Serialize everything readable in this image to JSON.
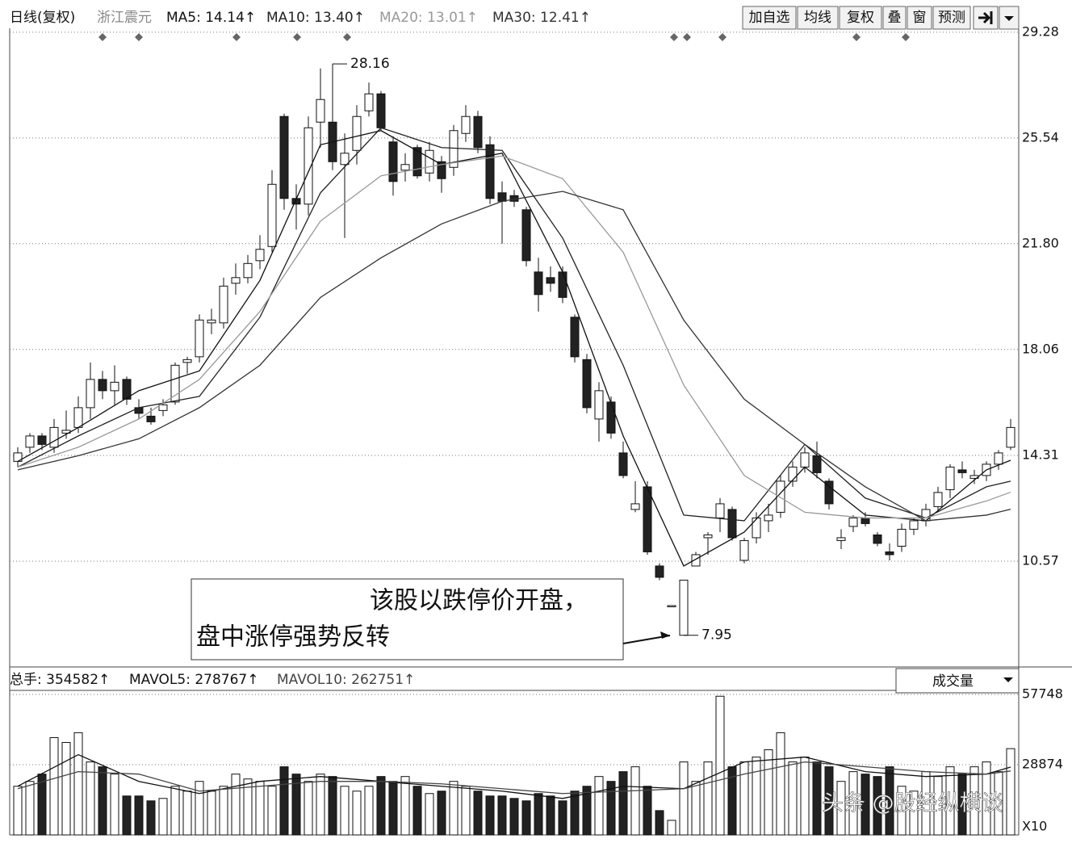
{
  "header": {
    "title": "日线(复权)",
    "stock": "浙江震元",
    "buttons": [
      "加自选",
      "均线",
      "复权",
      "叠",
      "窗",
      "预测"
    ]
  },
  "annotation": {
    "lines": [
      "该股以跌停价开盘，",
      "盘中涨停强势反转"
    ]
  },
  "watermark": "头条 @股经纵横谈",
  "chart_data": [
    {
      "type": "candlestick",
      "open": [
        14.1,
        14.6,
        15.0,
        14.6,
        15.1,
        15.3,
        16.0,
        17.0,
        16.6,
        17.0,
        16.0,
        15.7,
        15.9,
        16.2,
        17.6,
        17.8,
        19.0,
        19.0,
        20.4,
        20.6,
        21.2,
        21.7,
        26.3,
        23.4,
        23.2,
        26.1,
        26.1,
        24.6,
        25.1,
        26.5,
        27.1,
        25.4,
        24.4,
        25.2,
        24.3,
        24.7,
        24.5,
        25.7,
        26.3,
        25.3,
        23.6,
        23.5,
        23.0,
        20.8,
        20.6,
        20.8,
        19.2,
        17.7,
        15.6,
        16.2,
        14.4,
        12.4,
        13.2,
        10.4,
        9.0,
        7.95,
        10.4,
        11.4,
        12.1,
        12.4,
        10.6,
        11.4,
        12.0,
        12.3,
        13.4,
        13.9,
        14.3,
        13.4,
        11.3,
        11.8,
        12.1,
        11.5,
        10.9,
        11.1,
        11.7,
        12.0,
        12.5,
        13.1,
        13.8,
        13.5,
        13.6,
        14.0,
        14.6
      ],
      "high": [
        14.6,
        15.1,
        15.1,
        15.6,
        15.9,
        16.4,
        17.6,
        17.3,
        17.5,
        17.1,
        16.3,
        16.0,
        16.3,
        17.6,
        17.8,
        19.3,
        19.5,
        20.6,
        21.1,
        21.4,
        22.1,
        24.4,
        26.4,
        23.9,
        26.3,
        28.0,
        28.16,
        25.7,
        26.7,
        27.5,
        27.2,
        25.6,
        25.0,
        25.3,
        25.4,
        24.9,
        26.0,
        26.7,
        26.5,
        25.6,
        24.0,
        23.7,
        23.1,
        21.3,
        21.0,
        21.0,
        19.3,
        17.9,
        16.9,
        16.4,
        14.8,
        13.4,
        13.4,
        10.5,
        9.0,
        9.9,
        10.9,
        11.6,
        12.8,
        12.5,
        11.4,
        12.3,
        12.6,
        13.6,
        14.1,
        14.6,
        14.8,
        13.5,
        11.7,
        12.2,
        12.3,
        11.6,
        11.2,
        11.9,
        12.1,
        12.6,
        13.2,
        14.0,
        14.1,
        13.8,
        14.1,
        14.5,
        15.6
      ],
      "low": [
        13.9,
        14.4,
        14.5,
        14.4,
        14.9,
        15.1,
        15.6,
        16.3,
        16.1,
        16.1,
        15.6,
        15.4,
        15.7,
        16.1,
        17.2,
        17.6,
        18.6,
        18.8,
        20.0,
        20.4,
        20.9,
        21.5,
        23.0,
        22.3,
        22.8,
        25.2,
        24.4,
        22.0,
        24.6,
        26.3,
        25.8,
        23.5,
        24.0,
        24.1,
        24.0,
        23.6,
        24.2,
        25.4,
        25.0,
        23.2,
        21.8,
        23.1,
        21.0,
        19.4,
        20.1,
        19.7,
        17.6,
        15.8,
        14.8,
        14.9,
        13.5,
        12.3,
        10.8,
        9.9,
        9.0,
        7.95,
        10.4,
        10.8,
        11.6,
        11.3,
        10.5,
        11.2,
        11.6,
        12.1,
        13.2,
        13.7,
        13.5,
        12.4,
        11.0,
        11.6,
        11.8,
        11.1,
        10.6,
        10.9,
        11.5,
        11.8,
        12.3,
        12.8,
        13.5,
        13.3,
        13.4,
        13.8,
        14.5
      ],
      "close": [
        14.4,
        15.0,
        14.7,
        15.3,
        15.2,
        16.0,
        17.0,
        16.6,
        16.9,
        16.3,
        15.8,
        15.5,
        16.1,
        17.5,
        17.7,
        19.1,
        19.1,
        20.3,
        20.6,
        21.1,
        21.6,
        23.9,
        23.4,
        23.2,
        25.9,
        26.9,
        24.7,
        25.0,
        26.3,
        27.1,
        25.9,
        24.0,
        24.6,
        24.2,
        25.1,
        24.1,
        25.8,
        26.3,
        25.2,
        23.4,
        23.3,
        23.3,
        21.2,
        20.0,
        20.4,
        19.9,
        17.8,
        16.0,
        16.6,
        15.1,
        13.6,
        12.6,
        10.9,
        10.0,
        9.0,
        9.9,
        10.8,
        11.5,
        12.6,
        11.4,
        11.3,
        12.1,
        12.2,
        13.4,
        13.9,
        14.4,
        13.7,
        12.6,
        11.4,
        12.1,
        11.9,
        11.2,
        10.8,
        11.7,
        12.0,
        12.4,
        13.0,
        13.9,
        13.7,
        13.6,
        14.0,
        14.4,
        15.3
      ],
      "high_label": 28.16,
      "low_label": 7.95,
      "ylim": [
        7.0,
        29.42
      ],
      "yticks": [
        10.57,
        14.31,
        18.06,
        {
          "value": 21.8,
          "label": "21.80"
        },
        25.54,
        29.28
      ],
      "grid": true,
      "series": [
        {
          "legend": "MA5: 14.14↑",
          "color": "#111111",
          "x": [
            0,
            5,
            10,
            15,
            20,
            25,
            30,
            35,
            40,
            45,
            50,
            55,
            60,
            65,
            70,
            75,
            80,
            82
          ],
          "values": [
            14.1,
            15.3,
            16.6,
            17.3,
            20.5,
            25.3,
            25.8,
            24.6,
            25.0,
            20.8,
            15.0,
            10.4,
            11.6,
            13.9,
            12.2,
            12.0,
            13.8,
            14.14
          ]
        },
        {
          "legend": "MA10: 13.40↑",
          "color": "#222222",
          "x": [
            0,
            5,
            10,
            15,
            20,
            25,
            30,
            35,
            40,
            45,
            50,
            55,
            60,
            65,
            70,
            75,
            80,
            82
          ],
          "values": [
            13.9,
            15.0,
            16.0,
            16.4,
            19.2,
            23.6,
            25.9,
            25.2,
            25.1,
            22.0,
            17.5,
            12.2,
            12.0,
            14.7,
            12.8,
            12.1,
            13.2,
            13.4
          ]
        },
        {
          "legend": "MA20: 13.01↑",
          "color": "#999999",
          "x": [
            0,
            5,
            10,
            15,
            20,
            25,
            30,
            35,
            40,
            45,
            50,
            55,
            60,
            65,
            70,
            75,
            80,
            82
          ],
          "values": [
            13.9,
            14.6,
            15.6,
            17.0,
            19.4,
            22.6,
            24.2,
            24.6,
            24.9,
            24.1,
            21.5,
            16.8,
            13.6,
            12.3,
            12.1,
            12.1,
            12.7,
            13.01
          ]
        },
        {
          "legend": "MA30: 12.41↑",
          "color": "#333333",
          "x": [
            0,
            5,
            10,
            15,
            20,
            25,
            30,
            35,
            40,
            45,
            50,
            55,
            60,
            65,
            70,
            75,
            80,
            82
          ],
          "values": [
            13.8,
            14.3,
            14.9,
            16.0,
            17.5,
            19.9,
            21.3,
            22.5,
            23.3,
            23.65,
            23.0,
            19.1,
            16.3,
            14.7,
            13.2,
            12.0,
            12.2,
            12.41
          ]
        }
      ]
    },
    {
      "type": "volume",
      "total_label": "总手: 354582↑",
      "selector": "成交量",
      "unit_label": "X10",
      "values": [
        20000,
        22000,
        25000,
        40000,
        38000,
        42000,
        30000,
        28000,
        25000,
        16000,
        16000,
        14000,
        15000,
        20000,
        18000,
        22000,
        18000,
        20000,
        25000,
        23000,
        22000,
        20000,
        28000,
        25000,
        22000,
        25000,
        24000,
        20000,
        18000,
        20000,
        24000,
        22000,
        24000,
        20000,
        17000,
        18000,
        22000,
        20000,
        18000,
        16000,
        16000,
        15000,
        14000,
        17000,
        16000,
        14000,
        18000,
        20000,
        24000,
        22000,
        26000,
        28000,
        20000,
        10000,
        6000,
        30000,
        22000,
        30000,
        57000,
        28000,
        30000,
        32000,
        35000,
        42000,
        30000,
        32000,
        30000,
        28000,
        22000,
        26000,
        25000,
        24000,
        28000,
        20000,
        18000,
        26000,
        24000,
        28000,
        25000,
        28000,
        30000,
        26000,
        35458
      ],
      "ylim": [
        0,
        59400
      ],
      "yticks": [
        28874,
        57748
      ],
      "series": [
        {
          "legend": "MAVOL5: 278767↑",
          "color": "#111111",
          "x": [
            0,
            5,
            10,
            15,
            20,
            25,
            30,
            35,
            40,
            45,
            50,
            55,
            60,
            65,
            70,
            75,
            80,
            82
          ],
          "values": [
            20000,
            33000,
            22000,
            17000,
            22000,
            24000,
            22000,
            20000,
            18000,
            15000,
            20000,
            19000,
            30000,
            32000,
            26000,
            24000,
            25000,
            27877
          ]
        },
        {
          "legend": "MAVOL10: 262751↑",
          "color": "#444444",
          "x": [
            0,
            5,
            10,
            15,
            20,
            25,
            30,
            35,
            40,
            45,
            50,
            55,
            60,
            65,
            70,
            75,
            80,
            82
          ],
          "values": [
            19000,
            26000,
            25000,
            18000,
            20000,
            22000,
            22000,
            21000,
            19000,
            17000,
            18000,
            19000,
            25000,
            30000,
            28000,
            26000,
            25000,
            26275
          ]
        }
      ]
    }
  ]
}
